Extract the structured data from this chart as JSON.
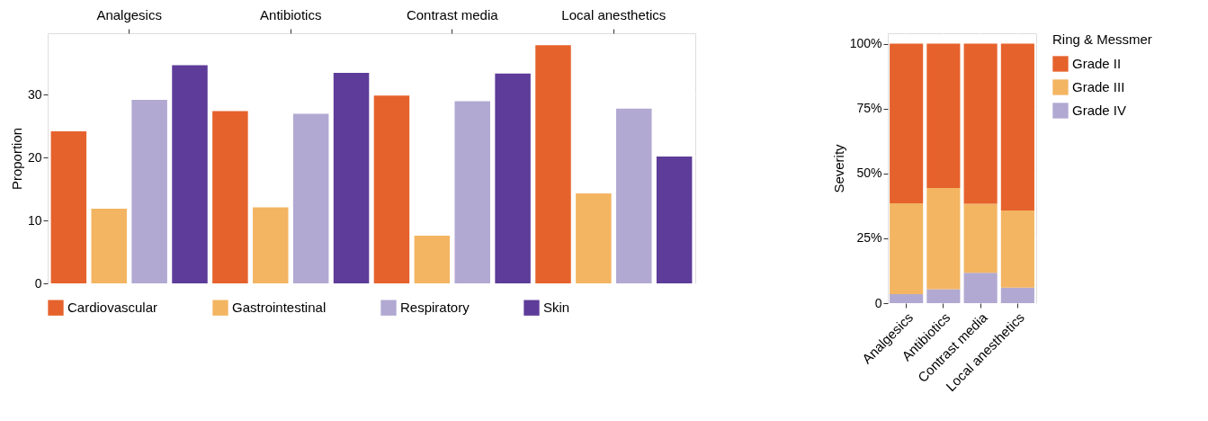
{
  "chart_data": [
    {
      "type": "bar",
      "ylabel": "Proportion",
      "categories": [
        "Analgesics",
        "Antibiotics",
        "Contrast media",
        "Local anesthetics"
      ],
      "ylim": [
        0,
        39.8
      ],
      "yticks": [
        0,
        10,
        20,
        30
      ],
      "grid": true,
      "legend": "bottom",
      "series": [
        {
          "name": "Cardiovascular",
          "color": "#e6622c",
          "values": [
            24.2,
            27.4,
            29.9,
            37.9
          ]
        },
        {
          "name": "Gastrointestinal",
          "color": "#f3b562",
          "values": [
            11.9,
            12.1,
            7.6,
            14.3
          ]
        },
        {
          "name": "Respiratory",
          "color": "#b1a9d2",
          "values": [
            29.2,
            27.0,
            29.0,
            27.8
          ]
        },
        {
          "name": "Skin",
          "color": "#5e3c99",
          "values": [
            34.7,
            33.5,
            33.4,
            20.2
          ]
        }
      ]
    },
    {
      "type": "bar",
      "stacked": true,
      "ylabel": "Severity",
      "legend_title": "Ring & Messmer",
      "legend": "right",
      "grid": true,
      "categories": [
        "Analgesics",
        "Antibiotics",
        "Contrast media",
        "Local anesthetics"
      ],
      "ylim": [
        0,
        104
      ],
      "yticks": [
        0,
        {
          "value": 25,
          "label": "25%"
        },
        {
          "value": 50,
          "label": "50%"
        },
        {
          "value": 75,
          "label": "75%"
        },
        {
          "value": 100,
          "label": "100%"
        }
      ],
      "series": [
        {
          "name": "Grade IV",
          "color": "#b1a9d2",
          "values": [
            3.5,
            5.4,
            11.7,
            6.0
          ]
        },
        {
          "name": "Grade III",
          "color": "#f3b562",
          "values": [
            35.0,
            39.0,
            26.6,
            29.7
          ]
        },
        {
          "name": "Grade II",
          "color": "#e6622c",
          "values": [
            61.5,
            55.6,
            61.7,
            64.3
          ]
        }
      ]
    }
  ]
}
